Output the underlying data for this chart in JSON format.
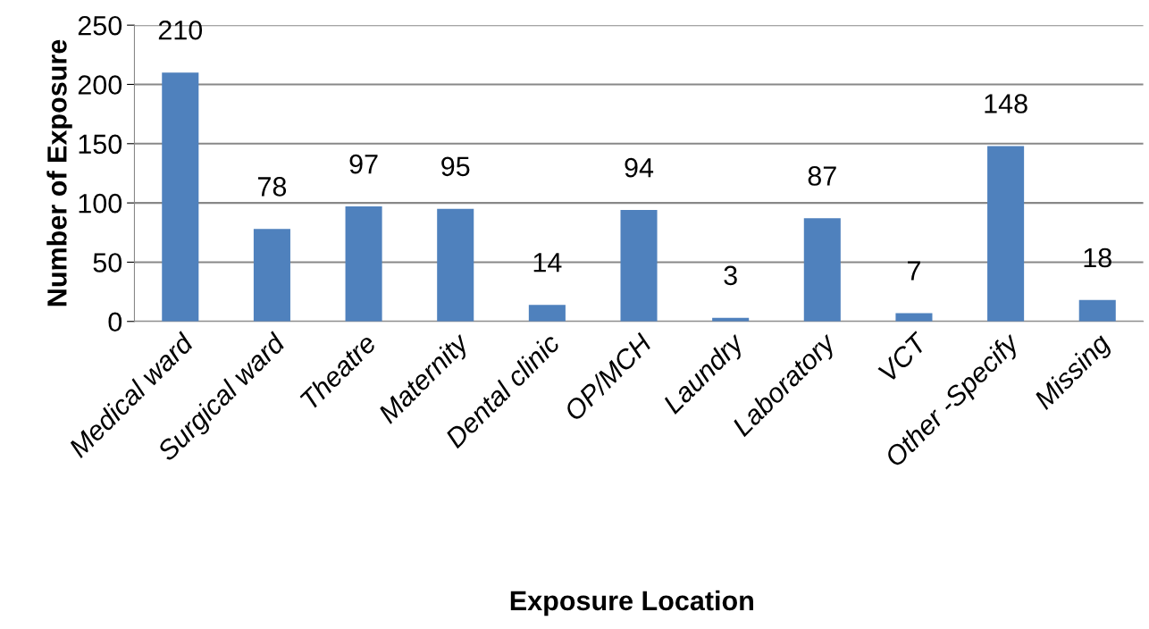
{
  "chart_data": {
    "type": "bar",
    "xlabel": "Exposure Location",
    "ylabel": "Number of Exposure",
    "categories": [
      "Medical ward",
      "Surgical ward",
      "Theatre",
      "Maternity",
      "Dental clinic",
      "OP/MCH",
      "Laundry",
      "Laboratory",
      "VCT",
      "Other -Specify",
      "Missing"
    ],
    "values": [
      210,
      78,
      97,
      95,
      14,
      94,
      3,
      87,
      7,
      148,
      18
    ],
    "color": "#4f81bd",
    "ylim": [
      0,
      250
    ],
    "yticks": [
      0,
      50,
      100,
      150,
      200,
      250
    ],
    "grid": "y",
    "data_labels": true
  }
}
